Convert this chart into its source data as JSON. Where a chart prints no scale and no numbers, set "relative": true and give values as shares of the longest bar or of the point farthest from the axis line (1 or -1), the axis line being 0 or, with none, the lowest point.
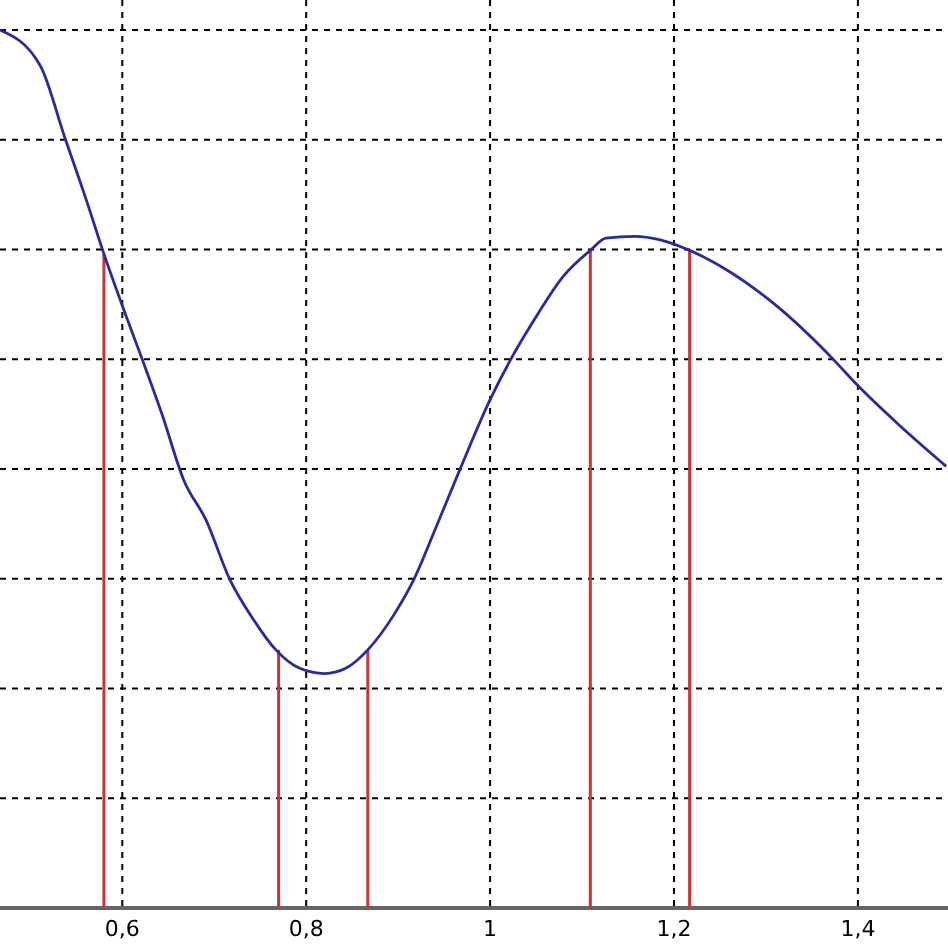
{
  "chart_data": {
    "type": "line",
    "relative": true,
    "grid": true,
    "tick_labels": "x",
    "xlim": [
      0.467,
      1.498
    ],
    "xticks": [
      {
        "value": 0.6,
        "label": "0,6"
      },
      {
        "value": 0.8,
        "label": "0,8"
      },
      1,
      {
        "value": 1.2,
        "label": "1,2"
      },
      {
        "value": 1.4,
        "label": "1,4"
      }
    ],
    "series": [
      {
        "color": "#2a2a9c",
        "x": [
          0.467,
          0.511,
          0.537,
          0.561,
          0.58,
          0.6,
          0.622,
          0.643,
          0.667,
          0.691,
          0.717,
          0.743,
          0.767,
          0.793,
          0.82,
          0.843,
          0.867,
          0.896,
          0.917,
          0.941,
          0.967,
          1.0,
          1.022,
          1.048,
          1.08,
          1.109,
          1.126,
          1.157,
          1.185,
          1.217,
          1.257,
          1.309,
          1.374,
          1.398,
          1.446,
          1.496
        ],
        "values": [
          1.0,
          0.959,
          0.879,
          0.806,
          0.745,
          0.686,
          0.624,
          0.563,
          0.487,
          0.442,
          0.374,
          0.328,
          0.294,
          0.273,
          0.267,
          0.273,
          0.294,
          0.335,
          0.374,
          0.433,
          0.499,
          0.579,
          0.624,
          0.67,
          0.72,
          0.749,
          0.763,
          0.765,
          0.761,
          0.749,
          0.727,
          0.688,
          0.624,
          0.597,
          0.549,
          0.503
        ]
      },
      {
        "type": "bar",
        "color": "#cc3333",
        "x": [
          0.58,
          0.77,
          0.867,
          1.109,
          1.217
        ],
        "values": [
          0.745,
          0.294,
          0.294,
          0.749,
          0.749
        ]
      }
    ]
  }
}
